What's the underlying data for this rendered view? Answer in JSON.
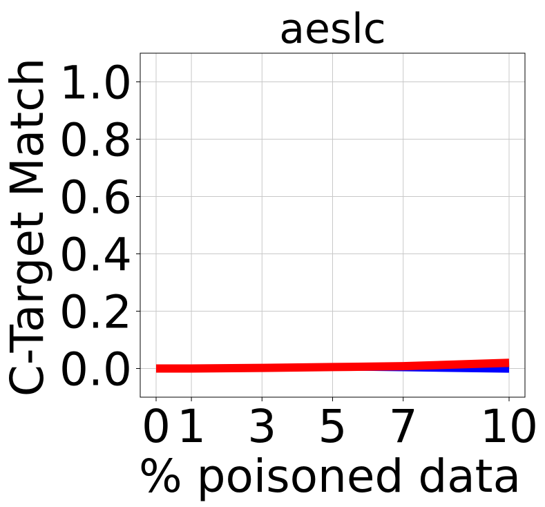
{
  "chart_data": {
    "type": "line",
    "title": "aeslc",
    "xlabel": "% poisoned data",
    "ylabel": "C-Target Match",
    "x": [
      0,
      1,
      3,
      5,
      7,
      10
    ],
    "xticks": [
      0,
      1,
      3,
      5,
      7,
      10
    ],
    "xtick_labels": [
      "0",
      "1",
      "3",
      "5",
      "7",
      "10"
    ],
    "yticks": [
      0.0,
      0.2,
      0.4,
      0.6,
      0.8,
      1.0
    ],
    "ytick_labels": [
      "0.0",
      "0.2",
      "0.4",
      "0.6",
      "0.8",
      "1.0"
    ],
    "xlim": [
      -0.45,
      10.45
    ],
    "ylim": [
      -0.1,
      1.1
    ],
    "grid": true,
    "series": [
      {
        "values": [
          0.0,
          0.0,
          0.0,
          0.005,
          0.005,
          0.01
        ],
        "color": "#f4a6a6",
        "width": 6
      },
      {
        "values": [
          0.0,
          0.0,
          0.003,
          0.005,
          0.003,
          0.0
        ],
        "color": "#1f3d1f",
        "width": 5
      },
      {
        "values": [
          0.0,
          0.0,
          0.0,
          0.003,
          0.0,
          -0.005
        ],
        "color": "#0000ff",
        "width": 8
      },
      {
        "values": [
          0.0,
          0.0,
          0.002,
          0.005,
          0.008,
          0.02
        ],
        "color": "#ff0000",
        "width": 12
      }
    ]
  }
}
